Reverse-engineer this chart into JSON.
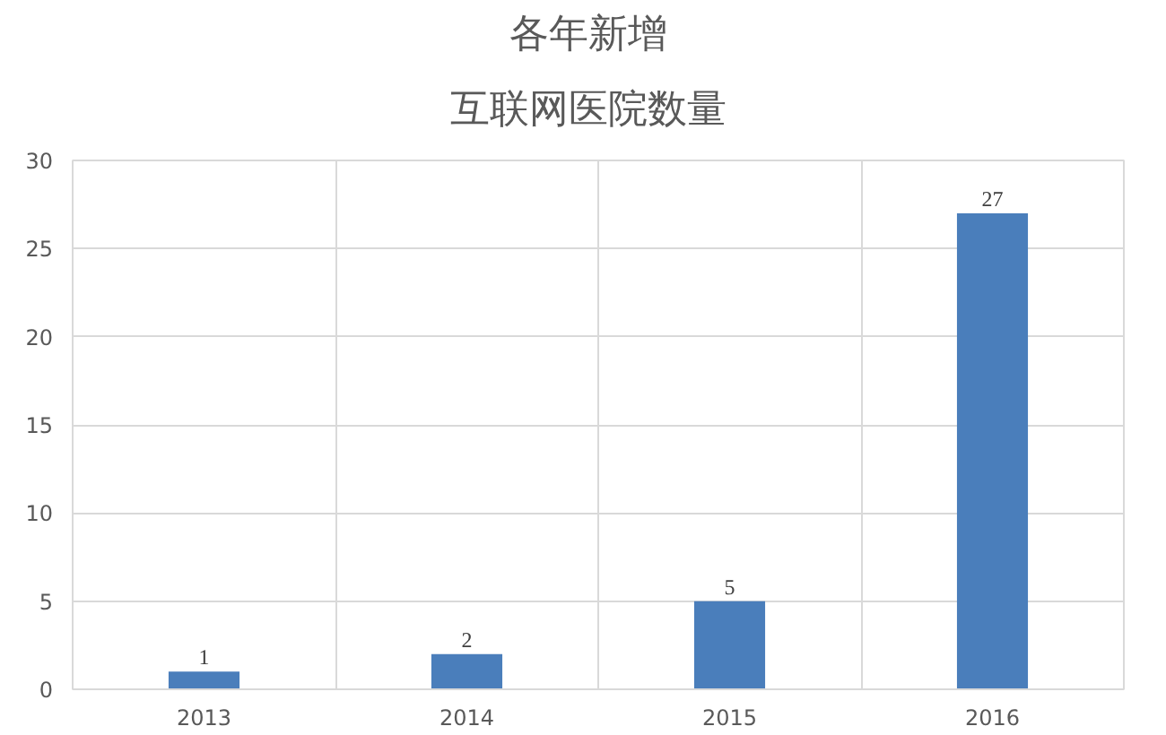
{
  "chart_data": {
    "type": "bar",
    "title": "各年新增",
    "subtitle": "互联网医院数量",
    "categories": [
      "2013",
      "2014",
      "2015",
      "2016"
    ],
    "values": [
      1,
      2,
      5,
      27
    ],
    "color": "#4a7ebb",
    "ylim": [
      0,
      30
    ],
    "yticks": [
      0,
      5,
      10,
      15,
      20,
      25,
      30
    ],
    "grid": true,
    "data_labels": true
  }
}
